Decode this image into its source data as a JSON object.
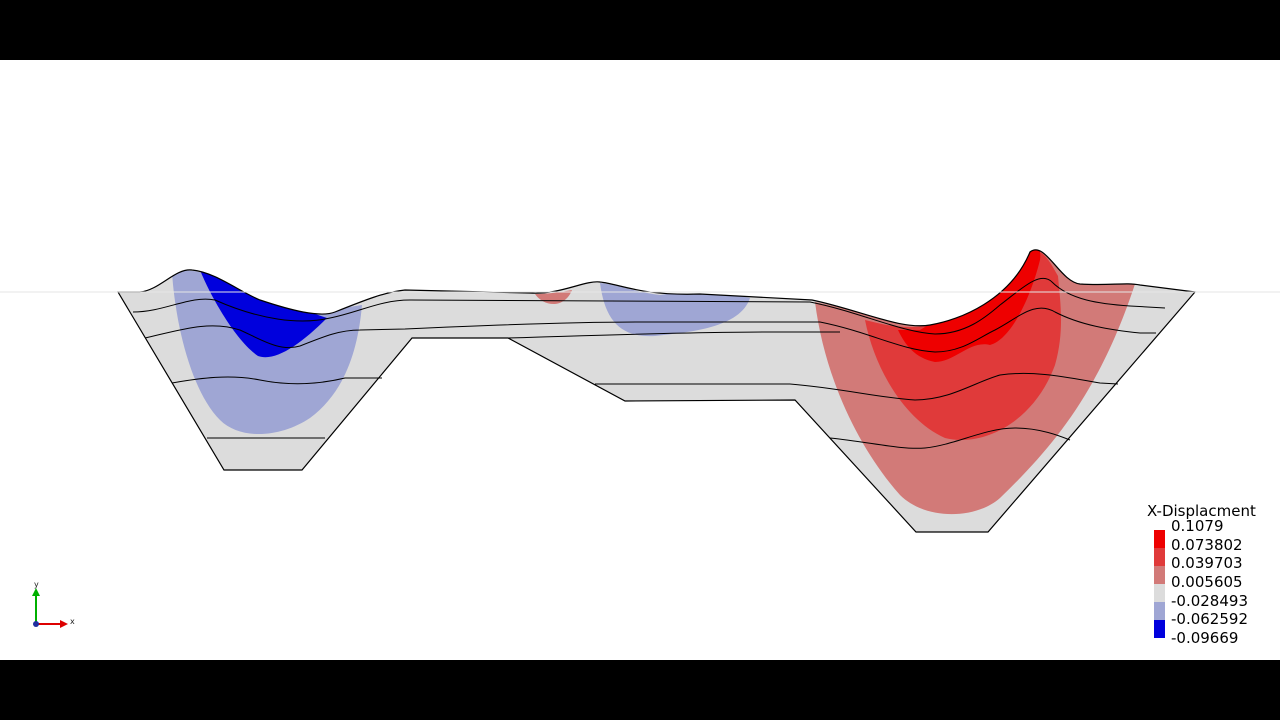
{
  "legend": {
    "title": "X-Displacment",
    "entries": [
      {
        "label": "0.1079",
        "color": "#ee0000"
      },
      {
        "label": "0.073802",
        "color": "#ee0000"
      },
      {
        "label": "0.039703",
        "color": "#e03a3a"
      },
      {
        "label": "0.005605",
        "color": "#d27a78"
      },
      {
        "label": "-0.028493",
        "color": "#dcdcdc"
      },
      {
        "label": "-0.062592",
        "color": "#9fa6d4"
      },
      {
        "label": "-0.09669",
        "color": "#0000dd"
      }
    ]
  },
  "axes_triad": {
    "x_label": "x",
    "y_label": "y"
  },
  "colors": {
    "background": "#ffffff",
    "letterbox": "#000000",
    "neutral": "#dcdcdc",
    "blue_light": "#9fa6d4",
    "blue_strong": "#0000dd",
    "red_light": "#d27a78",
    "red_mid": "#e03a3a",
    "red_strong": "#ee0000"
  }
}
